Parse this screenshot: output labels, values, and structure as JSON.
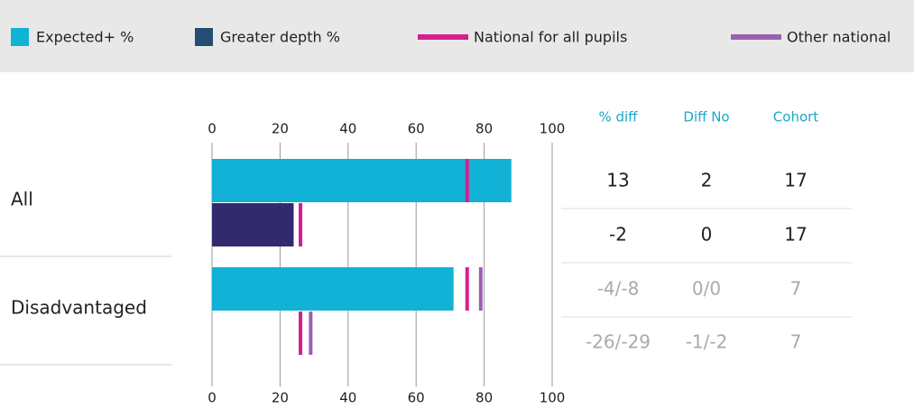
{
  "chart_data": {
    "type": "bar",
    "orientation": "horizontal",
    "categories": [
      "All",
      "Disadvantaged"
    ],
    "series": [
      {
        "name": "Expected+ %",
        "color": "#12b1d6",
        "kind": "bar",
        "row": 0,
        "values": [
          88,
          71
        ]
      },
      {
        "name": "Greater depth %",
        "color": "#312b6e",
        "legend_color": "#254c73",
        "kind": "bar",
        "row": 1,
        "values": [
          24,
          null
        ]
      },
      {
        "name": "National for all pupils",
        "color": "#d61f8f",
        "kind": "marker",
        "values": [
          75,
          75
        ],
        "depth_values": [
          26,
          26
        ]
      },
      {
        "name": "Other national",
        "color": "#9b5fb0",
        "kind": "marker",
        "values": [
          null,
          79
        ],
        "depth_values": [
          null,
          29
        ]
      }
    ],
    "xlim": [
      0,
      100
    ],
    "xticks": [
      0,
      20,
      40,
      60,
      80,
      100
    ],
    "grid": true,
    "table": {
      "columns": [
        "% diff",
        "Diff No",
        "Cohort"
      ],
      "header_color": "#1ba7c9",
      "rows": [
        {
          "color": "#222222",
          "cells": [
            13,
            2,
            17
          ]
        },
        {
          "color": "#222222",
          "cells": [
            -2,
            0,
            17
          ]
        },
        {
          "color": "#aaaaaa",
          "cells": [
            "-4/-8",
            "0/0",
            7
          ]
        },
        {
          "color": "#aaaaaa",
          "cells": [
            "-26/-29",
            "-1/-2",
            7
          ]
        }
      ]
    }
  }
}
